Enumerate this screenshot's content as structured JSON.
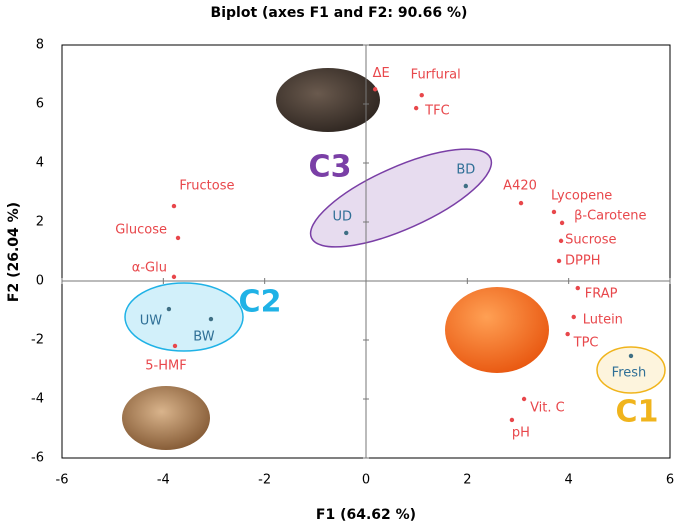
{
  "chart_data": {
    "type": "scatter",
    "title": "Biplot (axes F1 and F2: 90.66 %)",
    "xlabel": "F1 (64.62 %)",
    "ylabel": "F2 (26.04 %)",
    "xlim": [
      -6,
      6
    ],
    "ylim": [
      -6,
      8
    ],
    "xticks": [
      -6,
      -4,
      -2,
      0,
      2,
      4,
      6
    ],
    "yticks": [
      -6,
      -4,
      -2,
      0,
      2,
      4,
      6,
      8
    ],
    "series": [
      {
        "color": "#e8474b",
        "label_color": "#e8474b",
        "labels": [
          "ΔE",
          "Furfural",
          "TFC",
          "Fructose",
          "Glucose",
          "α-Glu",
          "5-HMF",
          "A420",
          "Lycopene",
          "β-Carotene",
          "Sucrose",
          "DPPH",
          "FRAP",
          "Lutein",
          "TPC",
          "Vit. C",
          "pH"
        ],
        "x": [
          0.18,
          1.1,
          0.99,
          -3.79,
          -3.71,
          -3.79,
          -3.77,
          3.06,
          3.71,
          3.87,
          3.85,
          3.81,
          4.18,
          4.1,
          3.98,
          3.12,
          2.88
        ],
        "y": [
          6.5,
          6.3,
          5.86,
          2.54,
          1.46,
          0.14,
          -2.2,
          2.64,
          2.34,
          1.97,
          1.36,
          0.68,
          -0.24,
          -1.22,
          -1.8,
          -4.0,
          -4.71
        ]
      },
      {
        "color": "#3f6f84",
        "label_color": "#2f6f96",
        "labels": [
          "BD",
          "UD",
          "UW",
          "BW",
          "Fresh"
        ],
        "x": [
          1.97,
          -0.39,
          -3.89,
          -3.06,
          5.23
        ],
        "y": [
          3.22,
          1.63,
          -0.95,
          -1.29,
          -2.54
        ]
      }
    ],
    "clusters": [
      {
        "label": "C3",
        "color": "#7a3fa6"
      },
      {
        "label": "C2",
        "color": "#1fb2e6"
      },
      {
        "label": "C1",
        "color": "#f0b41c"
      }
    ]
  }
}
